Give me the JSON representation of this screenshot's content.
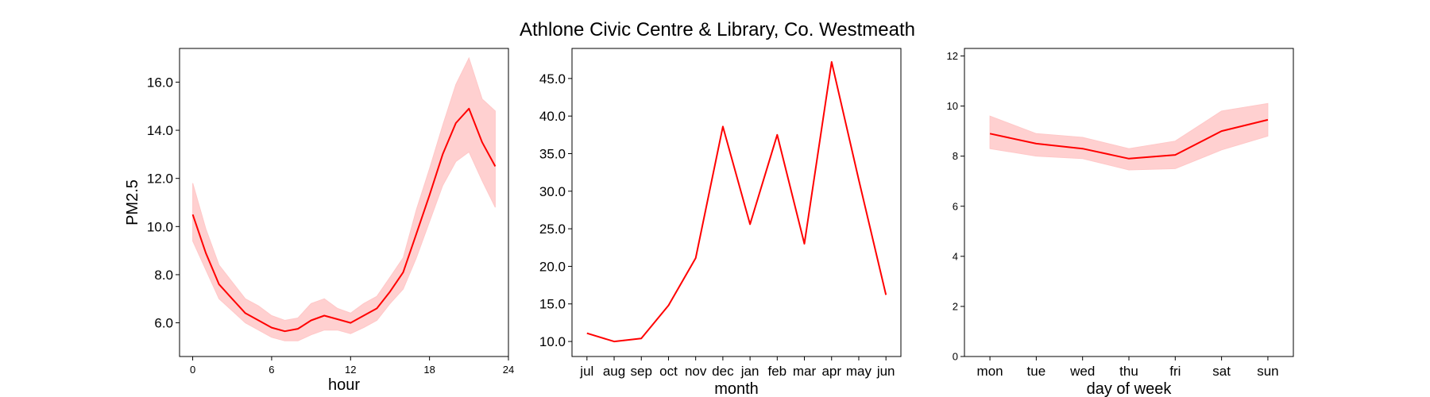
{
  "title": "Athlone Civic Centre & Library, Co. Westmeath",
  "colors": {
    "line": "#ff0000",
    "band": "#ffc8c8"
  },
  "chart_data": [
    {
      "type": "line",
      "name": "hourly",
      "xlabel": "hour",
      "ylabel": "PM2.5",
      "xlim": [
        -1,
        24
      ],
      "ylim": [
        4.6,
        17.4
      ],
      "xticks": [
        0,
        6,
        12,
        18,
        24
      ],
      "xticklabels": [
        "0",
        "6",
        "12",
        "18",
        "24"
      ],
      "yticks": [
        6,
        8,
        10,
        12,
        14,
        16
      ],
      "yticklabels": [
        "6.0",
        "8.0",
        "10.0",
        "12.0",
        "14.0",
        "16.0"
      ],
      "x": [
        0,
        1,
        2,
        3,
        4,
        5,
        6,
        7,
        8,
        9,
        10,
        11,
        12,
        13,
        14,
        15,
        16,
        17,
        18,
        19,
        20,
        21,
        22,
        23
      ],
      "series": [
        {
          "values": [
            10.5,
            8.9,
            7.6,
            7.0,
            6.4,
            6.1,
            5.8,
            5.65,
            5.75,
            6.1,
            6.3,
            6.15,
            6.0,
            6.3,
            6.6,
            7.3,
            8.1,
            9.7,
            11.3,
            13.0,
            14.3,
            14.9,
            13.5,
            12.5
          ],
          "lower": [
            9.4,
            8.2,
            7.0,
            6.5,
            6.0,
            5.7,
            5.4,
            5.25,
            5.25,
            5.5,
            5.7,
            5.7,
            5.55,
            5.8,
            6.1,
            6.8,
            7.4,
            8.7,
            10.2,
            11.7,
            12.7,
            13.1,
            11.9,
            10.8
          ],
          "upper": [
            11.8,
            9.9,
            8.4,
            7.7,
            7.0,
            6.7,
            6.3,
            6.1,
            6.2,
            6.8,
            7.0,
            6.6,
            6.4,
            6.8,
            7.1,
            7.9,
            8.7,
            10.7,
            12.4,
            14.2,
            15.9,
            17.0,
            15.3,
            14.8
          ]
        }
      ]
    },
    {
      "type": "line",
      "name": "monthly",
      "xlabel": "month",
      "ylim": [
        8.0,
        49.0
      ],
      "categories": [
        "jul",
        "aug",
        "sep",
        "oct",
        "nov",
        "dec",
        "jan",
        "feb",
        "mar",
        "apr",
        "may",
        "jun"
      ],
      "yticks": [
        10,
        15,
        20,
        25,
        30,
        35,
        40,
        45
      ],
      "yticklabels": [
        "10.0",
        "15.0",
        "20.0",
        "25.0",
        "30.0",
        "35.0",
        "40.0",
        "45.0"
      ],
      "series": [
        {
          "values": [
            11.1,
            10.0,
            10.4,
            14.8,
            21.1,
            38.6,
            25.6,
            37.5,
            23.0,
            47.2,
            31.5,
            16.2
          ]
        }
      ]
    },
    {
      "type": "line",
      "name": "weekly",
      "xlabel": "day of week",
      "ylim": [
        0,
        12.3
      ],
      "categories": [
        "mon",
        "tue",
        "wed",
        "thu",
        "fri",
        "sat",
        "sun"
      ],
      "yticks": [
        0,
        2,
        4,
        6,
        8,
        10,
        12
      ],
      "yticklabels": [
        "0",
        "2",
        "4",
        "6",
        "8",
        "10",
        "12"
      ],
      "series": [
        {
          "values": [
            8.9,
            8.5,
            8.3,
            7.9,
            8.05,
            9.0,
            9.45
          ],
          "lower": [
            8.3,
            8.0,
            7.9,
            7.45,
            7.5,
            8.25,
            8.8
          ],
          "upper": [
            9.6,
            8.9,
            8.75,
            8.3,
            8.6,
            9.8,
            10.1
          ]
        }
      ]
    }
  ]
}
